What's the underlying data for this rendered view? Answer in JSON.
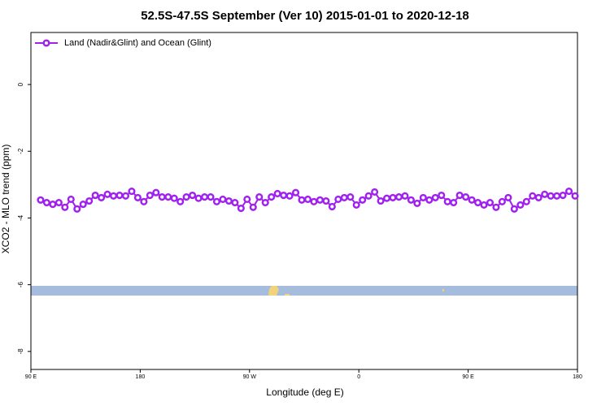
{
  "chart_data": {
    "type": "line",
    "title": "52.5S-47.5S September (Ver 10)   2015-01-01 to 2020-12-18",
    "x_label": "Longitude (deg E)",
    "y_label": "XCO2 - MLO trend (ppm)",
    "legend_position": "top-left",
    "xlim": [
      90,
      540
    ],
    "ylim": [
      -8.54,
      1.56
    ],
    "xticks": [
      {
        "value": 90,
        "label": "90 E"
      },
      180,
      {
        "value": 270,
        "label": "90 W"
      },
      {
        "value": 360,
        "label": "0"
      },
      {
        "value": 450,
        "label": "90 E"
      },
      {
        "value": 540,
        "label": "180"
      }
    ],
    "yticks": [
      0,
      -2,
      -4,
      -6,
      -8
    ],
    "series": [
      {
        "name": "Land (Nadir&Glint) and Ocean (Glint)",
        "color": "#a020f0",
        "x": [
          98,
          103,
          108,
          113,
          118,
          123,
          128,
          133,
          138,
          143,
          148,
          153,
          158,
          163,
          168,
          173,
          178,
          183,
          188,
          193,
          198,
          203,
          208,
          213,
          218,
          223,
          228,
          233,
          238,
          243,
          248,
          253,
          258,
          263,
          268,
          273,
          278,
          283,
          288,
          293,
          298,
          303,
          308,
          313,
          318,
          323,
          328,
          333,
          338,
          343,
          348,
          353,
          358,
          363,
          368,
          373,
          378,
          383,
          388,
          393,
          398,
          403,
          408,
          413,
          418,
          423,
          428,
          433,
          438,
          443,
          448,
          453,
          458,
          463,
          468,
          473,
          478,
          483,
          488,
          493,
          498,
          503,
          508,
          513,
          518,
          523,
          528,
          533,
          538
        ],
        "values": [
          -3.46,
          -3.54,
          -3.59,
          -3.54,
          -3.68,
          -3.44,
          -3.73,
          -3.59,
          -3.49,
          -3.32,
          -3.39,
          -3.29,
          -3.34,
          -3.32,
          -3.34,
          -3.2,
          -3.39,
          -3.51,
          -3.32,
          -3.24,
          -3.37,
          -3.37,
          -3.41,
          -3.51,
          -3.37,
          -3.32,
          -3.41,
          -3.37,
          -3.37,
          -3.51,
          -3.44,
          -3.49,
          -3.54,
          -3.71,
          -3.44,
          -3.68,
          -3.37,
          -3.54,
          -3.37,
          -3.27,
          -3.32,
          -3.34,
          -3.24,
          -3.46,
          -3.44,
          -3.51,
          -3.46,
          -3.49,
          -3.66,
          -3.44,
          -3.39,
          -3.37,
          -3.61,
          -3.46,
          -3.34,
          -3.22,
          -3.49,
          -3.41,
          -3.39,
          -3.37,
          -3.34,
          -3.46,
          -3.56,
          -3.39,
          -3.46,
          -3.39,
          -3.32,
          -3.51,
          -3.54,
          -3.32,
          -3.37,
          -3.46,
          -3.54,
          -3.61,
          -3.54,
          -3.68,
          -3.51,
          -3.39,
          -3.73,
          -3.61,
          -3.51,
          -3.34,
          -3.39,
          -3.29,
          -3.34,
          -3.34,
          -3.32,
          -3.2,
          -3.34
        ]
      }
    ]
  }
}
